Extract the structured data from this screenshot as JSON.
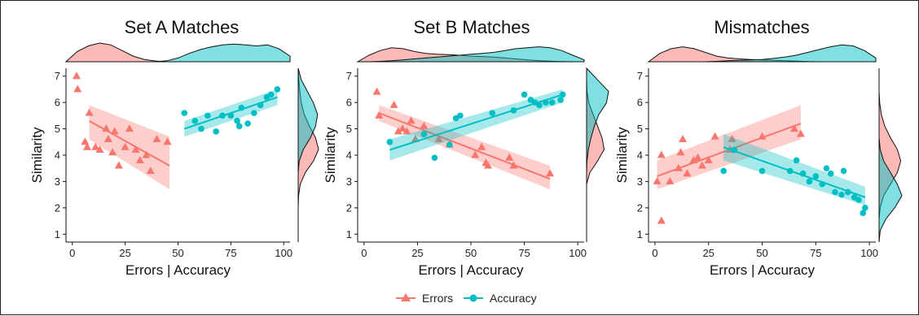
{
  "colors": {
    "errors": "#F8766D",
    "accuracy": "#00BFC4"
  },
  "legend": {
    "items": [
      {
        "label": "Errors",
        "color": "#F8766D",
        "marker": "triangle"
      },
      {
        "label": "Accuracy",
        "color": "#00BFC4",
        "marker": "circle"
      }
    ]
  },
  "chart_data": [
    {
      "type": "scatter",
      "title": "Set A Matches",
      "xlabel": "Errors | Accuracy",
      "ylabel": "Similarity",
      "xlim": [
        -3,
        103
      ],
      "ylim": [
        0.7,
        7.3
      ],
      "xticks": [
        0,
        25,
        50,
        75,
        100
      ],
      "yticks": [
        1,
        2,
        3,
        4,
        5,
        6,
        7
      ],
      "xtick_labels": [
        "0",
        "25",
        "50",
        "75",
        "100"
      ],
      "ytick_labels": [
        "1",
        "2",
        "3",
        "4",
        "5",
        "6",
        "7"
      ],
      "grid": false,
      "series": [
        {
          "name": "Errors",
          "marker": "triangle",
          "color": "#F8766D",
          "x": [
            2,
            2.5,
            6,
            7,
            8,
            11,
            13,
            16,
            17,
            19,
            20,
            22,
            25,
            27,
            30,
            32,
            35,
            37,
            40,
            45
          ],
          "y": [
            7.0,
            6.5,
            4.5,
            4.3,
            5.6,
            4.3,
            4.2,
            5.0,
            4.6,
            4.1,
            4.9,
            3.6,
            4.3,
            5.0,
            4.2,
            3.8,
            4.0,
            3.4,
            4.6,
            4.5
          ],
          "fit": {
            "x": [
              8,
              46
            ],
            "y": [
              5.3,
              3.6
            ],
            "ci": [
              [
                5.9,
                4.7
              ],
              [
                4.6,
                2.7
              ]
            ]
          }
        },
        {
          "name": "Accuracy",
          "marker": "circle",
          "color": "#00BFC4",
          "x": [
            53,
            58,
            61,
            64,
            68,
            71,
            75,
            78,
            79,
            80,
            83,
            86,
            89,
            92,
            94,
            97
          ],
          "y": [
            5.6,
            5.3,
            5.0,
            5.5,
            4.9,
            5.5,
            5.5,
            5.3,
            5.1,
            5.8,
            5.2,
            5.6,
            5.9,
            6.2,
            6.3,
            6.5
          ],
          "fit": {
            "x": [
              53,
              97
            ],
            "y": [
              5.0,
              6.2
            ],
            "ci": [
              [
                5.3,
                6.5
              ],
              [
                4.7,
                5.9
              ]
            ]
          }
        }
      ],
      "top_density": {
        "errors": [
          0.0,
          0.55,
          0.85,
          1.0,
          0.9,
          0.6,
          0.3,
          0.12,
          0.04,
          0.0,
          0.0,
          0.0,
          0.0,
          0.0,
          0.0,
          0.0,
          0.0,
          0.0,
          0.0,
          0.0,
          0.0
        ],
        "accuracy": [
          0.0,
          0.0,
          0.0,
          0.0,
          0.0,
          0.0,
          0.0,
          0.0,
          0.0,
          0.05,
          0.2,
          0.45,
          0.65,
          0.8,
          0.9,
          0.95,
          0.9,
          0.85,
          0.9,
          0.7,
          0.3
        ]
      },
      "right_density": {
        "errors": [
          0.0,
          0.0,
          0.0,
          0.0,
          0.02,
          0.1,
          0.35,
          0.75,
          1.0,
          0.85,
          0.55,
          0.3,
          0.15,
          0.08,
          0.03,
          0.0
        ],
        "accuracy": [
          0.0,
          0.0,
          0.0,
          0.0,
          0.0,
          0.0,
          0.0,
          0.05,
          0.25,
          0.6,
          0.85,
          0.95,
          0.75,
          0.45,
          0.15,
          0.0
        ]
      }
    },
    {
      "type": "scatter",
      "title": "Set B Matches",
      "xlabel": "Errors | Accuracy",
      "ylabel": "Similarity",
      "xlim": [
        -3,
        103
      ],
      "ylim": [
        0.7,
        7.3
      ],
      "xticks": [
        0,
        25,
        50,
        75,
        100
      ],
      "yticks": [
        1,
        2,
        3,
        4,
        5,
        6,
        7
      ],
      "xtick_labels": [
        "0",
        "25",
        "50",
        "75",
        "100"
      ],
      "ytick_labels": [
        "1",
        "2",
        "3",
        "4",
        "5",
        "6",
        "7"
      ],
      "grid": false,
      "series": [
        {
          "name": "Errors",
          "marker": "triangle",
          "color": "#F8766D",
          "x": [
            6,
            7,
            14,
            16,
            18,
            20,
            22,
            24,
            28,
            35,
            40,
            52,
            55,
            57,
            58,
            68,
            70,
            87
          ],
          "y": [
            6.4,
            5.5,
            5.9,
            4.9,
            5.0,
            4.9,
            5.3,
            4.6,
            5.1,
            4.6,
            4.4,
            4.0,
            4.3,
            3.7,
            3.6,
            3.9,
            3.6,
            3.3
          ],
          "fit": {
            "x": [
              7,
              87
            ],
            "y": [
              5.6,
              3.1
            ],
            "ci": [
              [
                5.9,
                3.6
              ],
              [
                5.3,
                2.7
              ]
            ]
          }
        },
        {
          "name": "Accuracy",
          "marker": "circle",
          "color": "#00BFC4",
          "x": [
            12,
            28,
            33,
            40,
            43,
            45,
            60,
            70,
            75,
            78,
            80,
            82,
            85,
            88,
            92,
            93
          ],
          "y": [
            4.5,
            4.8,
            3.9,
            4.4,
            5.4,
            5.5,
            5.6,
            5.7,
            6.3,
            6.1,
            6.0,
            5.9,
            6.0,
            6.0,
            6.1,
            6.3
          ],
          "fit": {
            "x": [
              12,
              93
            ],
            "y": [
              4.2,
              6.3
            ],
            "ci": [
              [
                4.6,
                6.5
              ],
              [
                3.8,
                6.0
              ]
            ]
          }
        }
      ],
      "top_density": {
        "errors": [
          0.0,
          0.35,
          0.6,
          0.75,
          0.7,
          0.55,
          0.45,
          0.4,
          0.38,
          0.35,
          0.3,
          0.28,
          0.25,
          0.2,
          0.15,
          0.1,
          0.06,
          0.03,
          0.01,
          0.0,
          0.0
        ],
        "accuracy": [
          0.0,
          0.0,
          0.02,
          0.05,
          0.1,
          0.15,
          0.2,
          0.25,
          0.3,
          0.35,
          0.4,
          0.45,
          0.5,
          0.6,
          0.7,
          0.75,
          0.8,
          0.75,
          0.6,
          0.35,
          0.1
        ]
      },
      "right_density": {
        "errors": [
          0.0,
          0.0,
          0.0,
          0.0,
          0.0,
          0.0,
          0.15,
          0.5,
          0.8,
          0.7,
          0.5,
          0.3,
          0.1,
          0.02,
          0.0,
          0.0
        ],
        "accuracy": [
          0.0,
          0.0,
          0.0,
          0.0,
          0.0,
          0.0,
          0.0,
          0.02,
          0.08,
          0.2,
          0.35,
          0.55,
          0.9,
          1.0,
          0.5,
          0.0
        ]
      }
    },
    {
      "type": "scatter",
      "title": "Mismatches",
      "xlabel": "Errors | Accuracy",
      "ylabel": "Similarity",
      "xlim": [
        -3,
        103
      ],
      "ylim": [
        0.7,
        7.3
      ],
      "xticks": [
        0,
        25,
        50,
        75,
        100
      ],
      "yticks": [
        1,
        2,
        3,
        4,
        5,
        6,
        7
      ],
      "xtick_labels": [
        "0",
        "25",
        "50",
        "75",
        "100"
      ],
      "ytick_labels": [
        "1",
        "2",
        "3",
        "4",
        "5",
        "6",
        "7"
      ],
      "grid": false,
      "series": [
        {
          "name": "Errors",
          "marker": "triangle",
          "color": "#F8766D",
          "x": [
            1,
            3,
            3,
            7,
            11,
            12,
            13,
            15,
            18,
            20,
            22,
            25,
            28,
            35,
            36,
            50,
            65,
            68
          ],
          "y": [
            3.0,
            4.0,
            1.5,
            3.0,
            3.5,
            4.1,
            4.6,
            3.3,
            3.8,
            3.9,
            3.6,
            3.8,
            4.7,
            4.2,
            4.6,
            4.7,
            5.0,
            4.8
          ],
          "fit": {
            "x": [
              1,
              68
            ],
            "y": [
              3.2,
              5.2
            ],
            "ci": [
              [
                3.8,
                5.9
              ],
              [
                2.7,
                4.6
              ]
            ]
          }
        },
        {
          "name": "Accuracy",
          "marker": "circle",
          "color": "#00BFC4",
          "x": [
            32,
            37,
            50,
            63,
            66,
            69,
            72,
            75,
            78,
            80,
            82,
            84,
            87,
            88,
            90,
            93,
            95,
            97,
            98
          ],
          "y": [
            3.4,
            4.2,
            3.4,
            3.4,
            3.8,
            3.3,
            3.0,
            3.2,
            2.9,
            3.5,
            3.3,
            2.6,
            2.5,
            3.4,
            2.6,
            2.4,
            2.3,
            1.8,
            2.0
          ],
          "fit": {
            "x": [
              32,
              98
            ],
            "y": [
              4.3,
              2.4
            ],
            "ci": [
              [
                4.8,
                2.8
              ],
              [
                3.8,
                2.1
              ]
            ]
          }
        }
      ],
      "top_density": {
        "errors": [
          0.0,
          0.45,
          0.7,
          0.8,
          0.7,
          0.5,
          0.3,
          0.2,
          0.15,
          0.12,
          0.1,
          0.08,
          0.05,
          0.03,
          0.01,
          0.0,
          0.0,
          0.0,
          0.0,
          0.0,
          0.0
        ],
        "accuracy": [
          0.0,
          0.0,
          0.0,
          0.0,
          0.0,
          0.0,
          0.02,
          0.05,
          0.08,
          0.1,
          0.12,
          0.18,
          0.25,
          0.35,
          0.5,
          0.65,
          0.8,
          0.9,
          0.85,
          0.6,
          0.2
        ]
      },
      "right_density": {
        "errors": [
          0.0,
          0.0,
          0.0,
          0.05,
          0.2,
          0.5,
          0.8,
          0.95,
          0.8,
          0.5,
          0.25,
          0.1,
          0.03,
          0.0,
          0.0,
          0.0
        ],
        "accuracy": [
          0.0,
          0.05,
          0.3,
          0.7,
          1.0,
          0.8,
          0.5,
          0.2,
          0.05,
          0.0,
          0.0,
          0.0,
          0.0,
          0.0,
          0.0,
          0.0
        ]
      }
    }
  ]
}
